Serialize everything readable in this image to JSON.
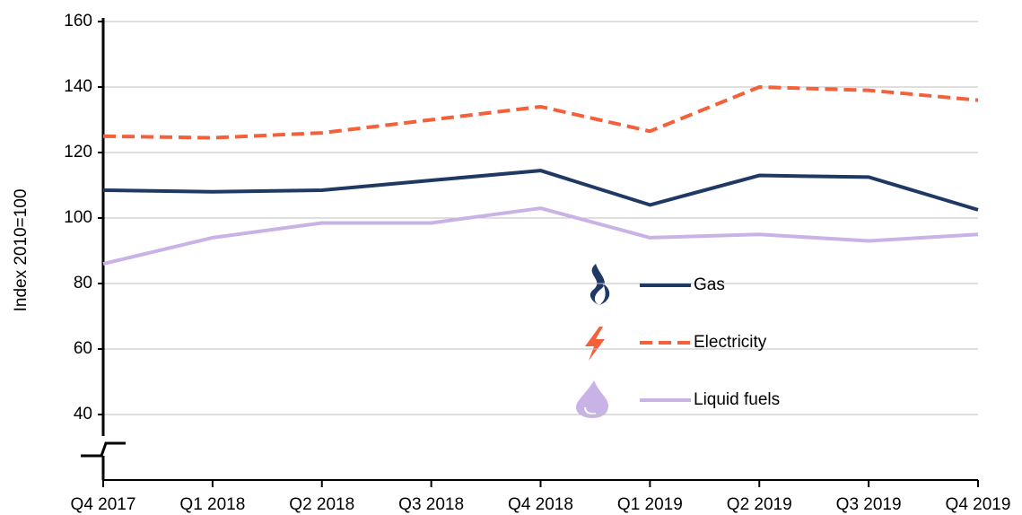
{
  "chart_data": {
    "type": "line",
    "y_label": "Index 2010=100",
    "categories": [
      "Q4 2017",
      "Q1 2018",
      "Q2 2018",
      "Q3 2018",
      "Q4 2018",
      "Q1 2019",
      "Q2 2019",
      "Q3 2019",
      "Q4 2019"
    ],
    "series": [
      {
        "name": "Gas",
        "color": "#1f3864",
        "style": "solid",
        "values": [
          108.5,
          108,
          108.5,
          111.5,
          114.5,
          104,
          113,
          112.5,
          102.5
        ]
      },
      {
        "name": "Electricity",
        "color": "#f4603a",
        "style": "dashed",
        "values": [
          125,
          124.5,
          126,
          130,
          134,
          126.5,
          140,
          139,
          136
        ]
      },
      {
        "name": "Liquid fuels",
        "color": "#c9b3e6",
        "style": "solid",
        "values": [
          86,
          94,
          98.5,
          98.5,
          103,
          94,
          95,
          93,
          95
        ]
      }
    ],
    "ylim": [
      20,
      160
    ],
    "yticks": [
      40,
      60,
      80,
      100,
      120,
      140,
      160
    ],
    "grid": true,
    "legend": "center"
  }
}
